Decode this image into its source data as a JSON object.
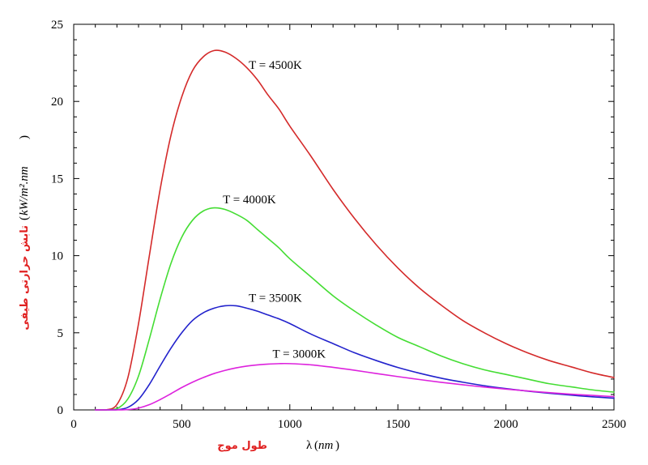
{
  "chart_data": {
    "type": "line",
    "xlabel": {
      "fa": "طول موج",
      "symbol": "λ",
      "unit": "nm"
    },
    "ylabel": {
      "fa": "تابش حرارتی طیفی",
      "unit": "kW/m².nm"
    },
    "xlim": [
      0,
      2500
    ],
    "ylim": [
      0,
      25
    ],
    "xticks": [
      0,
      500,
      1000,
      1500,
      2000,
      2500
    ],
    "yticks": [
      0,
      5,
      10,
      15,
      20,
      25
    ],
    "grid": false,
    "x": [
      100,
      150,
      200,
      250,
      300,
      350,
      400,
      450,
      500,
      550,
      600,
      650,
      700,
      750,
      800,
      850,
      900,
      950,
      1000,
      1100,
      1200,
      1300,
      1400,
      1500,
      1600,
      1700,
      1800,
      1900,
      2000,
      2100,
      2200,
      2300,
      2400,
      2500
    ],
    "series": [
      {
        "name": "T = 4500K",
        "color": "#d42a2a",
        "values": [
          0,
          0,
          0.35,
          2.06,
          5.6,
          10.0,
          14.3,
          17.8,
          20.3,
          22.0,
          22.9,
          23.3,
          23.2,
          22.8,
          22.2,
          21.4,
          20.4,
          19.5,
          18.4,
          16.4,
          14.3,
          12.4,
          10.7,
          9.2,
          7.9,
          6.8,
          5.8,
          5.0,
          4.3,
          3.7,
          3.2,
          2.8,
          2.4,
          2.1
        ]
      },
      {
        "name": "T = 4000K",
        "color": "#44dd33",
        "values": [
          0,
          0,
          0.08,
          0.7,
          2.2,
          4.6,
          7.2,
          9.5,
          11.2,
          12.3,
          12.9,
          13.1,
          13.0,
          12.7,
          12.3,
          11.7,
          11.1,
          10.5,
          9.8,
          8.6,
          7.4,
          6.4,
          5.5,
          4.7,
          4.1,
          3.5,
          3.0,
          2.6,
          2.3,
          2.0,
          1.7,
          1.5,
          1.3,
          1.15
        ]
      },
      {
        "name": "T = 3500K",
        "color": "#2222cc",
        "values": [
          0,
          0,
          0.01,
          0.16,
          0.68,
          1.65,
          2.85,
          4.0,
          5.0,
          5.8,
          6.3,
          6.6,
          6.75,
          6.75,
          6.6,
          6.4,
          6.15,
          5.9,
          5.6,
          4.9,
          4.3,
          3.7,
          3.2,
          2.75,
          2.38,
          2.06,
          1.8,
          1.57,
          1.38,
          1.22,
          1.08,
          0.96,
          0.85,
          0.76
        ]
      },
      {
        "name": "T = 3000K",
        "color": "#dd22dd",
        "values": [
          0,
          0,
          0,
          0.02,
          0.12,
          0.34,
          0.67,
          1.05,
          1.45,
          1.8,
          2.1,
          2.36,
          2.56,
          2.72,
          2.84,
          2.92,
          2.97,
          3.0,
          3.0,
          2.92,
          2.76,
          2.57,
          2.36,
          2.16,
          1.97,
          1.79,
          1.63,
          1.48,
          1.35,
          1.23,
          1.12,
          1.02,
          0.94,
          0.86
        ]
      }
    ],
    "annotations": [
      {
        "text": "T = 4500K",
        "series": 0,
        "x": 810,
        "y": 22.1
      },
      {
        "text": "T = 4000K",
        "series": 1,
        "x": 690,
        "y": 13.4
      },
      {
        "text": "T = 3500K",
        "series": 2,
        "x": 810,
        "y": 7.0
      },
      {
        "text": "T = 3000K",
        "series": 3,
        "x": 920,
        "y": 3.4
      }
    ]
  }
}
